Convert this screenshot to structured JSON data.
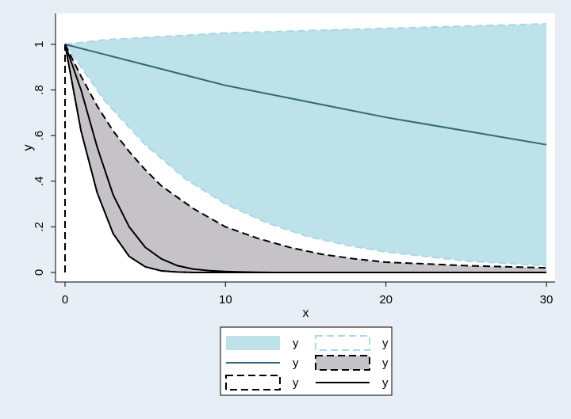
{
  "chart_data": {
    "type": "area",
    "xlabel": "x",
    "ylabel": "y",
    "xlim": [
      0,
      30
    ],
    "ylim": [
      0,
      1.1
    ],
    "x_ticks": [
      0,
      10,
      20,
      30
    ],
    "x_tick_labels": [
      "0",
      "10",
      "20",
      "30"
    ],
    "y_ticks": [
      0,
      0.2,
      0.4,
      0.6,
      0.8,
      1
    ],
    "y_tick_labels": [
      "0",
      ".2",
      ".4",
      ".6",
      ".8",
      "1"
    ],
    "grid": false,
    "legend_position": "bottom",
    "colors": {
      "page_background": "#e8eef6",
      "plot_background": "#ffffff",
      "light_blue_fill": "#bde2ea",
      "light_blue_line": "#a9d7e4",
      "teal_line": "#336677",
      "gray_fill": "#c6c3c8",
      "black": "#000000"
    },
    "series": [
      {
        "name": "y",
        "kind": "band",
        "style": "light-blue fill",
        "x": [
          0,
          2.5,
          5,
          7.5,
          10,
          12.5,
          15,
          17.5,
          20,
          22.5,
          25,
          27.5,
          30
        ],
        "lower": [
          1,
          0.75,
          0.56,
          0.41,
          0.3,
          0.22,
          0.16,
          0.12,
          0.09,
          0.07,
          0.05,
          0.04,
          0.03
        ],
        "upper": [
          1,
          1.02,
          1.03,
          1.04,
          1.05,
          1.055,
          1.06,
          1.065,
          1.07,
          1.075,
          1.08,
          1.085,
          1.09
        ]
      },
      {
        "name": "y",
        "kind": "line",
        "style": "light-blue dashed outline",
        "x": [
          0,
          2.5,
          5,
          7.5,
          10,
          12.5,
          15,
          17.5,
          20,
          22.5,
          25,
          27.5,
          30
        ],
        "lower": [
          1,
          0.75,
          0.56,
          0.41,
          0.3,
          0.22,
          0.16,
          0.12,
          0.09,
          0.07,
          0.05,
          0.04,
          0.03
        ],
        "upper": [
          1,
          1.02,
          1.03,
          1.04,
          1.05,
          1.055,
          1.06,
          1.065,
          1.07,
          1.075,
          1.08,
          1.085,
          1.09
        ]
      },
      {
        "name": "y",
        "kind": "line",
        "style": "teal solid",
        "x": [
          0,
          5,
          10,
          15,
          20,
          25,
          30
        ],
        "values": [
          1,
          0.91,
          0.82,
          0.75,
          0.68,
          0.62,
          0.56
        ]
      },
      {
        "name": "y",
        "kind": "band",
        "style": "gray fill, black dashed outline",
        "x": [
          0,
          1,
          2,
          3,
          4,
          5,
          6,
          7,
          8,
          10,
          12,
          14,
          16,
          18,
          20,
          25,
          30
        ],
        "lower": [
          1,
          0.62,
          0.35,
          0.17,
          0.07,
          0.025,
          0.007,
          0.002,
          0,
          0,
          0,
          0,
          0,
          0,
          0,
          0,
          0
        ],
        "upper": [
          1,
          0.86,
          0.73,
          0.62,
          0.53,
          0.45,
          0.38,
          0.33,
          0.28,
          0.2,
          0.15,
          0.11,
          0.08,
          0.06,
          0.045,
          0.03,
          0.02
        ]
      },
      {
        "name": "y",
        "kind": "line",
        "style": "black dashed outline",
        "x": [
          0,
          0,
          1,
          2,
          3,
          4,
          5,
          6,
          7,
          8,
          30,
          30
        ],
        "values": [
          0,
          1,
          0.62,
          0.35,
          0.17,
          0.07,
          0.025,
          0.007,
          0.002,
          0,
          0,
          0
        ]
      },
      {
        "name": "y",
        "kind": "line",
        "style": "black solid",
        "x": [
          0,
          1,
          2,
          3,
          4,
          5,
          6,
          7,
          8,
          9,
          10,
          11,
          12,
          13,
          30
        ],
        "values": [
          1,
          0.8,
          0.55,
          0.34,
          0.2,
          0.11,
          0.06,
          0.03,
          0.015,
          0.008,
          0.004,
          0.002,
          0.001,
          0,
          0
        ]
      }
    ],
    "legend": [
      {
        "label": "y",
        "swatch": "fill-blue"
      },
      {
        "label": "y",
        "swatch": "box-blue-dashed"
      },
      {
        "label": "y",
        "swatch": "line-teal"
      },
      {
        "label": "y",
        "swatch": "fill-gray-dashed"
      },
      {
        "label": "y",
        "swatch": "box-black-dashed"
      },
      {
        "label": "y",
        "swatch": "line-black"
      }
    ]
  }
}
